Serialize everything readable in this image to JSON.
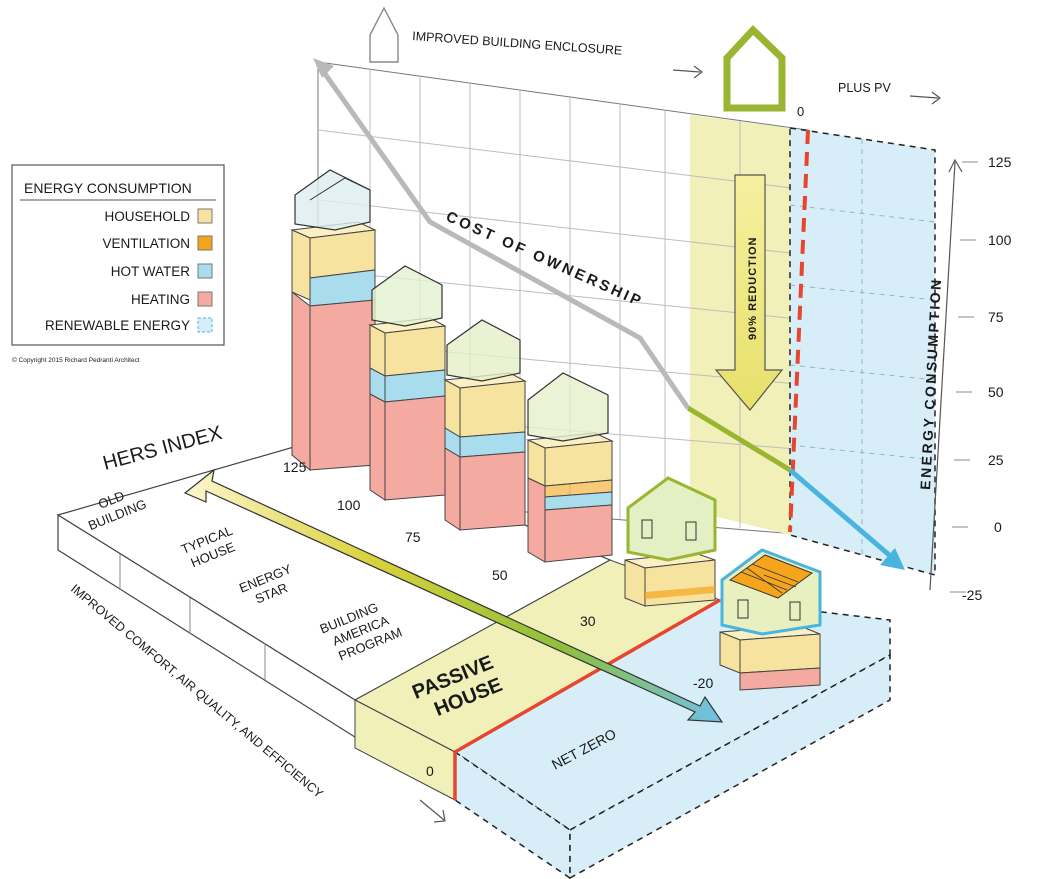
{
  "header": {
    "enclosure_label": "IMPROVED BUILDING ENCLOSURE",
    "pv_label": "PLUS PV"
  },
  "legend": {
    "title": "ENERGY CONSUMPTION",
    "items": [
      {
        "label": "HOUSEHOLD",
        "color": "#f7e3a0"
      },
      {
        "label": "VENTILATION",
        "color": "#f4a51c"
      },
      {
        "label": "HOT WATER",
        "color": "#a9dcec"
      },
      {
        "label": "HEATING",
        "color": "#f4aaa0"
      },
      {
        "label": "RENEWABLE ENERGY",
        "color": "#d7eef8"
      }
    ],
    "copyright": "© Copyright 2015 Richard Pedranti Architect"
  },
  "axes": {
    "hers_title": "HERS INDEX",
    "energy_title": "ENERGY CONSUMPTION",
    "energy_ticks": [
      "125",
      "100",
      "75",
      "50",
      "25",
      "0",
      "-25"
    ],
    "top_zero": "0",
    "comfort_label": "IMPROVED COMFORT, AIR QUALITY, AND EFFICIENCY"
  },
  "annotations": {
    "cost_of_ownership": "COST OF OWNERSHIP",
    "reduction": "90% REDUCTION"
  },
  "hers": {
    "values": [
      "125",
      "100",
      "75",
      "50",
      "30",
      "-20",
      "0"
    ]
  },
  "categories": {
    "old_line1": "OLD",
    "old_line2": "BUILDING",
    "typical_line1": "TYPICAL",
    "typical_line2": "HOUSE",
    "energy_line1": "ENERGY",
    "energy_line2": "STAR",
    "ba_line1": "BUILDING",
    "ba_line2": "AMERICA",
    "ba_line3": "PROGRAM",
    "passive_line1": "PASSIVE",
    "passive_line2": "HOUSE",
    "net_zero": "NET ZERO"
  },
  "colors": {
    "household": "#f7e3a0",
    "ventilation": "#f4a51c",
    "hot_water": "#a9dcec",
    "heating": "#f4aaa0",
    "renewable": "#d7eef8",
    "passive_zone": "#f1f0b8",
    "accent_red": "#e8452e",
    "accent_green": "#9ab531",
    "accent_blue": "#4ab4e0"
  }
}
